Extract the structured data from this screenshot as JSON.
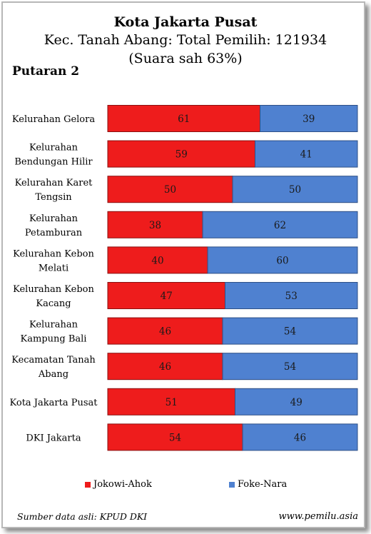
{
  "chart_data": {
    "type": "bar",
    "orientation": "horizontal",
    "stacked": true,
    "title": "Kota Jakarta Pusat",
    "subtitle": "Kec. Tanah Abang: Total Pemilih: 121934",
    "subtitle2": "(Suara sah 63%)",
    "section_label": "Putaran 2",
    "categories": [
      [
        "Kelurahan Gelora"
      ],
      [
        "Kelurahan",
        "Bendungan Hilir"
      ],
      [
        "Kelurahan Karet",
        "Tengsin"
      ],
      [
        "Kelurahan",
        "Petamburan"
      ],
      [
        "Kelurahan Kebon",
        "Melati"
      ],
      [
        "Kelurahan Kebon",
        "Kacang"
      ],
      [
        "Kelurahan",
        "Kampung Bali"
      ],
      [
        "Kecamatan Tanah",
        "Abang"
      ],
      [
        "Kota Jakarta Pusat"
      ],
      [
        "DKI Jakarta"
      ]
    ],
    "series": [
      {
        "name": "Jokowi-Ahok",
        "color": "#ee1c1c",
        "values": [
          61,
          59,
          50,
          38,
          40,
          47,
          46,
          46,
          51,
          54
        ]
      },
      {
        "name": "Foke-Nara",
        "color": "#4f81d0",
        "values": [
          39,
          41,
          50,
          62,
          60,
          53,
          54,
          54,
          49,
          46
        ]
      }
    ],
    "xlim": [
      0,
      100
    ],
    "legend_position": "bottom",
    "grid": false,
    "data_labels": true
  },
  "footer": {
    "source": "Sumber data asli: KPUD DKI",
    "website": "www.pemilu.asia"
  }
}
